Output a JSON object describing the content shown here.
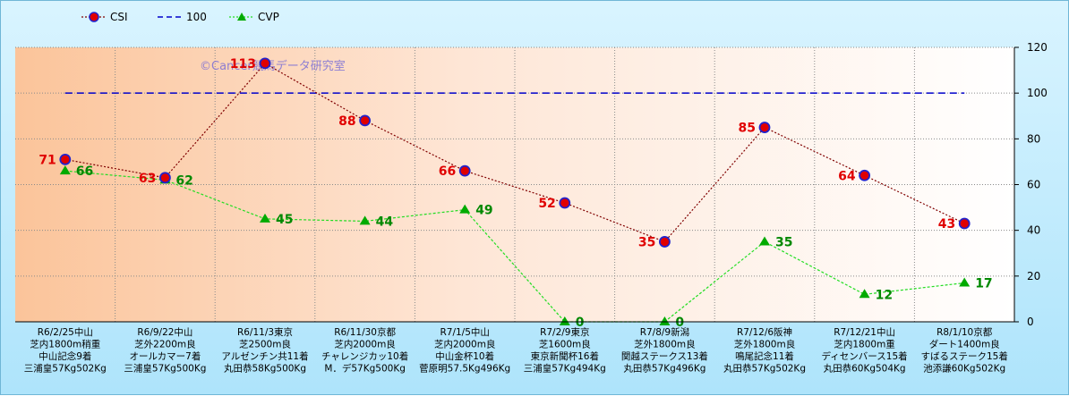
{
  "chart_data": {
    "type": "line",
    "watermark": "©Cancer競馬データ研究室",
    "ylim": [
      0,
      120
    ],
    "yticks": [
      0,
      20,
      40,
      60,
      80,
      100,
      120
    ],
    "grid": true,
    "legend_position": "top-left",
    "categories": [
      [
        "R6/2/25中山",
        "芝内1800m稍重",
        "中山記念9着",
        "三浦皇57Kg502Kg"
      ],
      [
        "R6/9/22中山",
        "芝外2200m良",
        "オールカマー7着",
        "三浦皇57Kg500Kg"
      ],
      [
        "R6/11/3東京",
        "芝2500m良",
        "アルゼンチン共11着",
        "丸田恭58Kg500Kg"
      ],
      [
        "R6/11/30京都",
        "芝内2000m良",
        "チャレンジカッ10着",
        "M．デ57Kg500Kg"
      ],
      [
        "R7/1/5中山",
        "芝内2000m良",
        "中山金杯10着",
        "菅原明57.5Kg496Kg"
      ],
      [
        "R7/2/9東京",
        "芝1600m良",
        "東京新聞杯16着",
        "三浦皇57Kg494Kg"
      ],
      [
        "R7/8/9新潟",
        "芝外1800m良",
        "関越ステークス13着",
        "丸田恭57Kg496Kg"
      ],
      [
        "R7/12/6阪神",
        "芝外1800m良",
        "鳴尾記念11着",
        "丸田恭57Kg502Kg"
      ],
      [
        "R7/12/21中山",
        "芝内1800m重",
        "ディセンバース15着",
        "丸田恭60Kg504Kg"
      ],
      [
        "R8/1/10京都",
        "ダート1400m良",
        "すばるステーク15着",
        "池添謙60Kg502Kg"
      ]
    ],
    "series": [
      {
        "name": "CSI",
        "color": "#800000",
        "marker_color": "#e00000",
        "values": [
          71,
          63,
          113,
          88,
          66,
          52,
          35,
          85,
          64,
          43
        ]
      },
      {
        "name": "100",
        "color": "#0000cc",
        "values": [
          100,
          100,
          100,
          100,
          100,
          100,
          100,
          100,
          100,
          100
        ]
      },
      {
        "name": "CVP",
        "color": "#22dd22",
        "marker_color": "#00aa00",
        "values": [
          66,
          62,
          45,
          44,
          49,
          0,
          0,
          35,
          12,
          17
        ]
      }
    ]
  }
}
